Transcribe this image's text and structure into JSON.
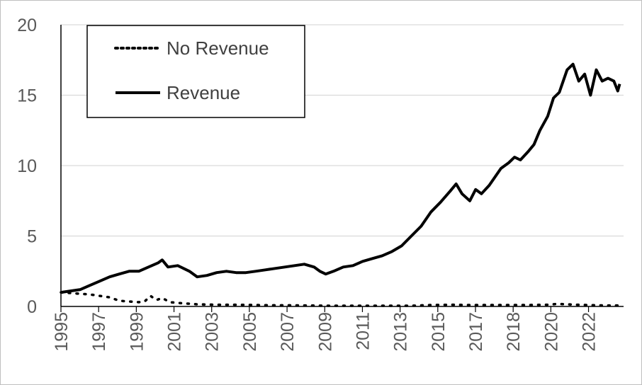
{
  "chart_data": {
    "type": "line",
    "title": "",
    "xlabel": "",
    "ylabel": "",
    "ylim": [
      0,
      20
    ],
    "yticks": [
      0,
      5,
      10,
      15,
      20
    ],
    "xlim": [
      1995,
      2023.9
    ],
    "xtick_labels": [
      "1995",
      "1997",
      "1999",
      "2001",
      "2003",
      "2005",
      "2007",
      "2009",
      "2011",
      "2013",
      "2015",
      "2017",
      "2018",
      "2020",
      "2022"
    ],
    "grid": "horizontal",
    "legend": "top-left",
    "series": [
      {
        "name": "No Revenue",
        "style": "dotted",
        "color": "#000000",
        "x": [
          1995.0,
          1995.5,
          1996.0,
          1996.5,
          1997.0,
          1997.5,
          1998.0,
          1998.5,
          1999.0,
          1999.3,
          1999.6,
          1999.9,
          2000.2,
          2000.6,
          2001.0,
          2001.5,
          2002.0,
          2003.0,
          2004.0,
          2005.0,
          2006.0,
          2007.0,
          2008.0,
          2009.0,
          2010.0,
          2011.0,
          2012.0,
          2013.0,
          2014.0,
          2015.0,
          2016.0,
          2017.0,
          2018.0,
          2019.0,
          2020.0,
          2020.5,
          2021.0,
          2021.5,
          2022.0,
          2022.5,
          2023.0,
          2023.7
        ],
        "y": [
          1.0,
          0.95,
          0.9,
          0.85,
          0.75,
          0.65,
          0.4,
          0.35,
          0.3,
          0.35,
          0.75,
          0.45,
          0.6,
          0.3,
          0.25,
          0.2,
          0.15,
          0.12,
          0.12,
          0.1,
          0.08,
          0.08,
          0.06,
          0.05,
          0.05,
          0.05,
          0.05,
          0.05,
          0.1,
          0.12,
          0.1,
          0.1,
          0.1,
          0.1,
          0.12,
          0.18,
          0.15,
          0.12,
          0.1,
          0.08,
          0.07,
          0.07
        ]
      },
      {
        "name": "Revenue",
        "style": "solid",
        "color": "#000000",
        "x": [
          1995.0,
          1995.5,
          1996.0,
          1996.5,
          1997.0,
          1997.5,
          1998.0,
          1998.5,
          1999.0,
          1999.5,
          2000.0,
          2000.2,
          2000.5,
          2001.0,
          2001.3,
          2001.6,
          2002.0,
          2002.5,
          2003.0,
          2003.5,
          2004.0,
          2004.5,
          2005.0,
          2005.5,
          2006.0,
          2006.5,
          2007.0,
          2007.5,
          2008.0,
          2008.3,
          2008.6,
          2009.0,
          2009.5,
          2010.0,
          2010.5,
          2011.0,
          2011.5,
          2012.0,
          2012.5,
          2013.0,
          2013.5,
          2014.0,
          2014.5,
          2015.0,
          2015.3,
          2015.6,
          2016.0,
          2016.3,
          2016.6,
          2017.0,
          2017.3,
          2017.6,
          2018.0,
          2018.3,
          2018.6,
          2019.0,
          2019.3,
          2019.6,
          2020.0,
          2020.3,
          2020.6,
          2021.0,
          2021.3,
          2021.6,
          2021.9,
          2022.2,
          2022.5,
          2022.8,
          2023.1,
          2023.4,
          2023.6,
          2023.7
        ],
        "y": [
          1.0,
          1.1,
          1.2,
          1.5,
          1.8,
          2.1,
          2.3,
          2.5,
          2.5,
          2.8,
          3.1,
          3.3,
          2.8,
          2.9,
          2.7,
          2.5,
          2.1,
          2.2,
          2.4,
          2.5,
          2.4,
          2.4,
          2.5,
          2.6,
          2.7,
          2.8,
          2.9,
          3.0,
          2.8,
          2.5,
          2.3,
          2.5,
          2.8,
          2.9,
          3.2,
          3.4,
          3.6,
          3.9,
          4.3,
          5.0,
          5.7,
          6.7,
          7.4,
          8.2,
          8.7,
          8.0,
          7.5,
          8.3,
          8.0,
          8.6,
          9.2,
          9.8,
          10.2,
          10.6,
          10.4,
          11.0,
          11.5,
          12.5,
          13.5,
          14.8,
          15.2,
          16.8,
          17.2,
          16.0,
          16.5,
          15.0,
          16.8,
          16.0,
          16.2,
          16.0,
          15.3,
          15.8
        ]
      }
    ]
  }
}
